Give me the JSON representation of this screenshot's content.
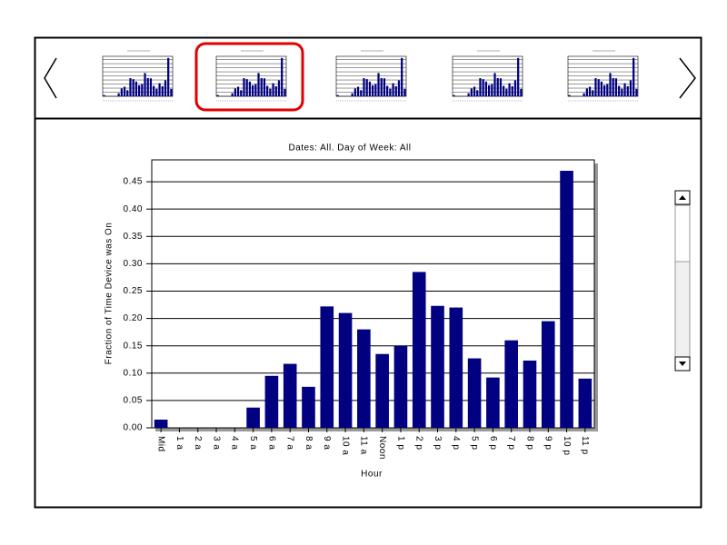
{
  "chart_data": {
    "type": "bar",
    "title": "Dates: All.  Day of Week: All",
    "xlabel": "Hour",
    "ylabel": "Fraction of Time Device was On",
    "categories": [
      "Mid",
      "1 a",
      "2 a",
      "3 a",
      "4 a",
      "5 a",
      "6 a",
      "7 a",
      "8 a",
      "9 a",
      "10 a",
      "11 a",
      "Noon",
      "1 p",
      "2 p",
      "3 p",
      "4 p",
      "5 p",
      "6 p",
      "7 p",
      "8 p",
      "9 p",
      "10 p",
      "11 p"
    ],
    "values": [
      0.015,
      0,
      0,
      0,
      0,
      0.037,
      0.095,
      0.117,
      0.075,
      0.222,
      0.21,
      0.18,
      0.135,
      0.15,
      0.285,
      0.223,
      0.22,
      0.127,
      0.092,
      0.16,
      0.123,
      0.195,
      0.47,
      0.09
    ],
    "color": "#000080",
    "ylim": [
      0,
      0.49
    ],
    "yticks": [
      {
        "value": 0,
        "label": "0.00"
      },
      0.05,
      {
        "value": 0.1,
        "label": "0.10"
      },
      0.15,
      {
        "value": 0.2,
        "label": "0.20"
      },
      0.25,
      {
        "value": 0.3,
        "label": "0.30"
      },
      0.35,
      {
        "value": 0.4,
        "label": "0.40"
      },
      0.45
    ],
    "grid": true
  }
}
